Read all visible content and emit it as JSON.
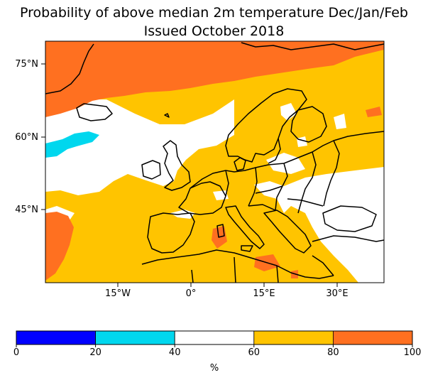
{
  "title": {
    "line1": "Probability of above median 2m temperature Dec/Jan/Feb",
    "line2": "Issued October 2018"
  },
  "map": {
    "lat_ticks": [
      "75°N",
      "60°N",
      "45°N"
    ],
    "lon_ticks": [
      "15°W",
      "0°",
      "15°E",
      "30°E"
    ]
  },
  "colorbar": {
    "ticks": [
      "0",
      "20",
      "40",
      "60",
      "80",
      "100"
    ],
    "units": "%",
    "bins": [
      {
        "range": "0-20",
        "color": "#0000ff"
      },
      {
        "range": "20-40",
        "color": "#00d7ee"
      },
      {
        "range": "40-60",
        "color": "#ffffff"
      },
      {
        "range": "60-80",
        "color": "#ffc400"
      },
      {
        "range": "80-100",
        "color": "#ff7020"
      }
    ]
  }
}
